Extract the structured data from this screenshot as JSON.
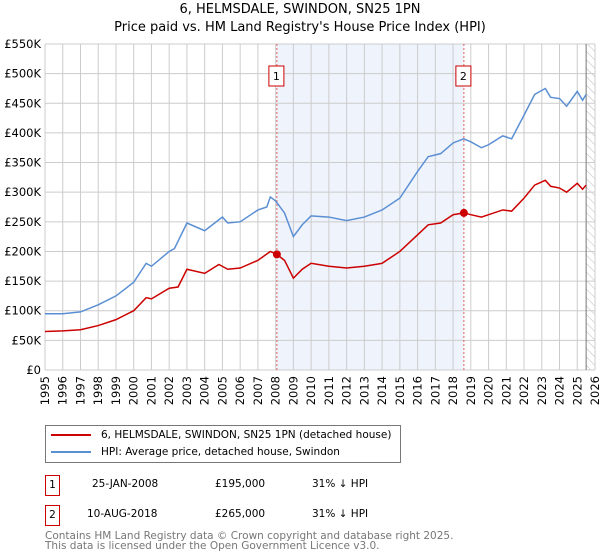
{
  "chart_data": {
    "type": "line",
    "title": "6, HELMSDALE, SWINDON, SN25 1PN",
    "subtitle": "Price paid vs. HM Land Registry's House Price Index (HPI)",
    "xlim": [
      1995,
      2026
    ],
    "ylim": [
      0,
      550000
    ],
    "x_ticks": [
      "1995",
      "1996",
      "1997",
      "1998",
      "1999",
      "2000",
      "2001",
      "2002",
      "2003",
      "2004",
      "2005",
      "2006",
      "2007",
      "2008",
      "2009",
      "2010",
      "2011",
      "2012",
      "2013",
      "2014",
      "2015",
      "2016",
      "2017",
      "2018",
      "2019",
      "2020",
      "2021",
      "2022",
      "2023",
      "2024",
      "2025",
      "2026"
    ],
    "y_ticks": [
      {
        "v": 0,
        "l": "£0"
      },
      {
        "v": 50000,
        "l": "£50K"
      },
      {
        "v": 100000,
        "l": "£100K"
      },
      {
        "v": 150000,
        "l": "£150K"
      },
      {
        "v": 200000,
        "l": "£200K"
      },
      {
        "v": 250000,
        "l": "£250K"
      },
      {
        "v": 300000,
        "l": "£300K"
      },
      {
        "v": 350000,
        "l": "£350K"
      },
      {
        "v": 400000,
        "l": "£400K"
      },
      {
        "v": 450000,
        "l": "£450K"
      },
      {
        "v": 500000,
        "l": "£500K"
      },
      {
        "v": 550000,
        "l": "£550K"
      }
    ],
    "grid": true,
    "series": [
      {
        "name": "6, HELMSDALE, SWINDON, SN25 1PN (detached house)",
        "color": "#cc0000",
        "x": [
          1995,
          1996,
          1997,
          1998,
          1999,
          2000,
          2000.7,
          2001,
          2002,
          2002.5,
          2003,
          2004,
          2004.8,
          2005.3,
          2006,
          2007,
          2007.7,
          2008.07,
          2008.5,
          2009,
          2009.5,
          2010,
          2011,
          2012,
          2013,
          2014,
          2015,
          2016,
          2016.6,
          2017.3,
          2018,
          2018.6,
          2019,
          2019.6,
          2020,
          2020.8,
          2021.3,
          2022,
          2022.6,
          2023.2,
          2023.5,
          2024,
          2024.4,
          2025,
          2025.3,
          2025.5
        ],
        "y": [
          65000,
          66000,
          68000,
          75000,
          85000,
          100000,
          122000,
          120000,
          138000,
          140000,
          170000,
          163000,
          178000,
          170000,
          172000,
          185000,
          200000,
          195000,
          185000,
          155000,
          170000,
          180000,
          175000,
          172000,
          175000,
          180000,
          200000,
          228000,
          245000,
          248000,
          262000,
          265000,
          262000,
          258000,
          262000,
          270000,
          268000,
          290000,
          312000,
          320000,
          310000,
          307000,
          300000,
          315000,
          305000,
          312000
        ]
      },
      {
        "name": "HPI: Average price, detached house, Swindon",
        "color": "#5b8fd4",
        "x": [
          1995,
          1996,
          1997,
          1998,
          1999,
          2000,
          2000.7,
          2001,
          2002,
          2002.3,
          2003,
          2004,
          2005,
          2005.3,
          2006,
          2007,
          2007.5,
          2007.7,
          2008,
          2008.5,
          2009,
          2009.5,
          2010,
          2011,
          2012,
          2013,
          2014,
          2015,
          2016,
          2016.6,
          2017.3,
          2018,
          2018.6,
          2019,
          2019.6,
          2020,
          2020.8,
          2021.3,
          2022,
          2022.6,
          2023.2,
          2023.5,
          2024,
          2024.4,
          2025,
          2025.3,
          2025.5
        ],
        "y": [
          95000,
          95000,
          98000,
          110000,
          125000,
          148000,
          180000,
          175000,
          200000,
          205000,
          248000,
          235000,
          258000,
          248000,
          250000,
          270000,
          275000,
          292000,
          285000,
          265000,
          225000,
          245000,
          260000,
          258000,
          252000,
          258000,
          270000,
          290000,
          335000,
          360000,
          365000,
          383000,
          390000,
          385000,
          375000,
          380000,
          395000,
          390000,
          430000,
          465000,
          475000,
          460000,
          458000,
          445000,
          470000,
          455000,
          465000
        ]
      }
    ],
    "sales": [
      {
        "label": "1",
        "date": "25-JAN-2008",
        "x": 2008.07,
        "price": "£195,000",
        "value": 195000,
        "delta": "31% ↓ HPI"
      },
      {
        "label": "2",
        "date": "10-AUG-2018",
        "x": 2018.61,
        "price": "£265,000",
        "value": 265000,
        "delta": "31% ↓ HPI"
      }
    ],
    "shaded_range": [
      2008.07,
      2018.61
    ],
    "forecast_hatch_from": 2025.5,
    "legend_position": "bottom"
  },
  "footer": {
    "line1": "Contains HM Land Registry data © Crown copyright and database right 2025.",
    "line2": "This data is licensed under the Open Government Licence v3.0."
  }
}
